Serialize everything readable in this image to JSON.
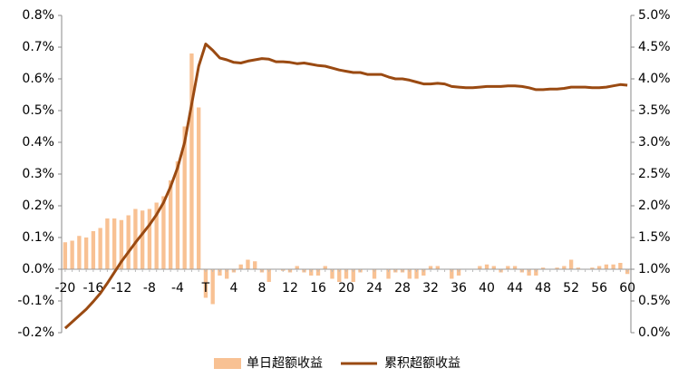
{
  "chart_data": {
    "type": "bar",
    "categories": [
      "-20",
      null,
      null,
      null,
      "-16",
      null,
      null,
      null,
      "-12",
      null,
      null,
      null,
      "-8",
      null,
      null,
      null,
      "-4",
      null,
      null,
      null,
      "T",
      null,
      null,
      null,
      "4",
      null,
      null,
      null,
      "8",
      null,
      null,
      null,
      "12",
      null,
      null,
      null,
      "16",
      null,
      null,
      null,
      "20",
      null,
      null,
      null,
      "24",
      null,
      null,
      null,
      "28",
      null,
      null,
      null,
      "32",
      null,
      null,
      null,
      "36",
      null,
      null,
      null,
      "40",
      null,
      null,
      null,
      "44",
      null,
      null,
      null,
      "48",
      null,
      null,
      null,
      "52",
      null,
      null,
      null,
      "56",
      null,
      null,
      null,
      "60"
    ],
    "series": [
      {
        "name": "单日超额收益",
        "type": "bar",
        "color": "#f8c193",
        "axis": "y",
        "values": [
          0.085,
          0.09,
          0.105,
          0.1,
          0.12,
          0.13,
          0.16,
          0.16,
          0.155,
          0.17,
          0.19,
          0.185,
          0.19,
          0.21,
          0.23,
          0.28,
          0.34,
          0.45,
          0.68,
          0.51,
          -0.09,
          -0.11,
          -0.02,
          -0.03,
          -0.01,
          0.015,
          0.03,
          0.025,
          -0.01,
          -0.04,
          0,
          -0.005,
          -0.01,
          0.01,
          -0.01,
          -0.02,
          -0.02,
          0.01,
          -0.03,
          -0.04,
          -0.03,
          -0.04,
          -0.01,
          0,
          -0.03,
          0,
          -0.03,
          -0.01,
          -0.01,
          -0.03,
          -0.03,
          -0.02,
          0.01,
          0.01,
          0,
          -0.03,
          -0.02,
          0,
          0,
          0.01,
          0.015,
          0.01,
          -0.01,
          0.01,
          0.01,
          -0.01,
          -0.02,
          -0.02,
          0.005,
          0,
          0.005,
          0.01,
          0.03,
          0.005,
          0,
          0.005,
          0.01,
          0.015,
          0.015,
          0.02,
          -0.015
        ]
      },
      {
        "name": "累积超额收益",
        "type": "line",
        "color": "#9a4a12",
        "axis": "y2",
        "values": [
          0.07,
          0.17,
          0.27,
          0.37,
          0.49,
          0.62,
          0.78,
          0.95,
          1.12,
          1.27,
          1.42,
          1.56,
          1.7,
          1.86,
          2.05,
          2.3,
          2.6,
          3.0,
          3.6,
          4.2,
          4.55,
          4.45,
          4.33,
          4.3,
          4.26,
          4.25,
          4.28,
          4.3,
          4.32,
          4.31,
          4.27,
          4.27,
          4.26,
          4.24,
          4.25,
          4.23,
          4.21,
          4.2,
          4.17,
          4.14,
          4.12,
          4.1,
          4.1,
          4.07,
          4.07,
          4.07,
          4.03,
          4.0,
          4.0,
          3.98,
          3.95,
          3.92,
          3.92,
          3.93,
          3.92,
          3.88,
          3.87,
          3.86,
          3.86,
          3.87,
          3.88,
          3.88,
          3.88,
          3.89,
          3.89,
          3.88,
          3.86,
          3.83,
          3.83,
          3.84,
          3.84,
          3.85,
          3.87,
          3.87,
          3.87,
          3.86,
          3.86,
          3.87,
          3.89,
          3.91,
          3.9
        ]
      }
    ],
    "ylim": [
      -0.2,
      0.8
    ],
    "yticks": [
      {
        "value": -0.2,
        "label": "-0.2%"
      },
      {
        "value": -0.1,
        "label": "-0.1%"
      },
      {
        "value": 0,
        "label": "0.0%"
      },
      {
        "value": 0.1,
        "label": "0.1%"
      },
      {
        "value": 0.2,
        "label": "0.2%"
      },
      {
        "value": 0.3,
        "label": "0.3%"
      },
      {
        "value": 0.4,
        "label": "0.4%"
      },
      {
        "value": 0.5,
        "label": "0.5%"
      },
      {
        "value": 0.6,
        "label": "0.6%"
      },
      {
        "value": 0.7,
        "label": "0.7%"
      },
      {
        "value": 0.8,
        "label": "0.8%"
      }
    ],
    "y2lim": [
      0,
      5
    ],
    "y2ticks": [
      {
        "value": 0,
        "label": "0.0%"
      },
      {
        "value": 0.5,
        "label": "0.5%"
      },
      {
        "value": 1,
        "label": "1.0%"
      },
      {
        "value": 1.5,
        "label": "1.5%"
      },
      {
        "value": 2,
        "label": "2.0%"
      },
      {
        "value": 2.5,
        "label": "2.5%"
      },
      {
        "value": 3,
        "label": "3.0%"
      },
      {
        "value": 3.5,
        "label": "3.5%"
      },
      {
        "value": 4,
        "label": "4.0%"
      },
      {
        "value": 4.5,
        "label": "4.5%"
      },
      {
        "value": 5,
        "label": "5.0%"
      }
    ],
    "legend": "bottom",
    "grid": false
  }
}
